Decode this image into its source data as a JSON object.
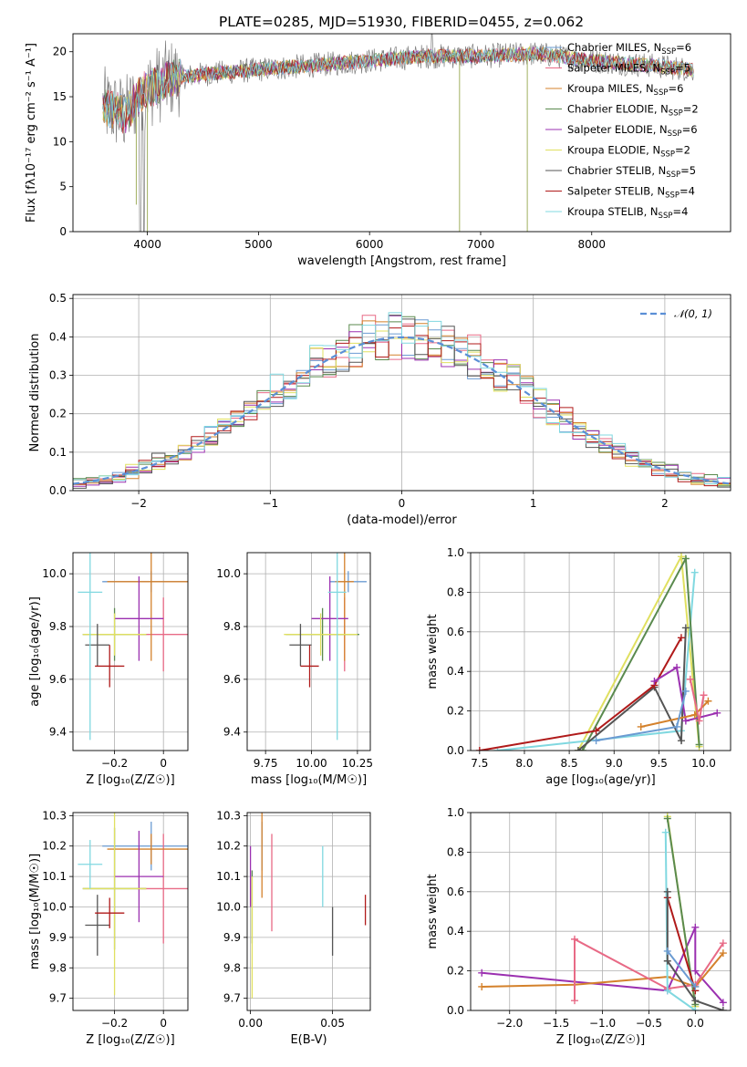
{
  "title": "PLATE=0285, MJD=51930, FIBERID=0455, z=0.062",
  "colors": {
    "grid": "#b0b0b0",
    "normal_fit": "#5b8fd6"
  },
  "chart_data": [
    {
      "id": "spectrum",
      "type": "line",
      "xlabel": "wavelength [Angstrom, rest frame]",
      "ylabel": "Flux [fλ10⁻¹⁷ erg cm⁻² s⁻¹ A⁻¹]",
      "xlim": [
        3330,
        9250
      ],
      "ylim": [
        0,
        22
      ],
      "xticks": [
        4000,
        5000,
        6000,
        7000,
        8000
      ],
      "yticks": [
        0,
        5,
        10,
        15,
        20
      ],
      "data_color": "#7f7f7f",
      "continuum_nodes": [
        [
          3600,
          14
        ],
        [
          3800,
          13
        ],
        [
          3950,
          15.5
        ],
        [
          4200,
          17
        ],
        [
          4500,
          17.5
        ],
        [
          5000,
          18
        ],
        [
          5500,
          18.5
        ],
        [
          6000,
          19
        ],
        [
          6500,
          19.5
        ],
        [
          7000,
          19.5
        ],
        [
          7500,
          19.8
        ],
        [
          8000,
          19
        ],
        [
          8500,
          18.5
        ],
        [
          8920,
          18
        ]
      ],
      "legend": [
        {
          "label": "Chabrier MILES, N",
          "sub": "SSP",
          "tail": "=6",
          "color": "#6b9bd2"
        },
        {
          "label": "Salpeter MILES, N",
          "sub": "SSP",
          "tail": "=5",
          "color": "#e86a86"
        },
        {
          "label": "Kroupa MILES, N",
          "sub": "SSP",
          "tail": "=6",
          "color": "#d4812b"
        },
        {
          "label": "Chabrier ELODIE, N",
          "sub": "SSP",
          "tail": "=2",
          "color": "#5a8a4e"
        },
        {
          "label": "Salpeter ELODIE, N",
          "sub": "SSP",
          "tail": "=6",
          "color": "#9b30b0"
        },
        {
          "label": "Kroupa ELODIE, N",
          "sub": "SSP",
          "tail": "=2",
          "color": "#e0e060"
        },
        {
          "label": "Chabrier STELIB, N",
          "sub": "SSP",
          "tail": "=5",
          "color": "#555555"
        },
        {
          "label": "Salpeter STELIB, N",
          "sub": "SSP",
          "tail": "=4",
          "color": "#b01a1a"
        },
        {
          "label": "Kroupa STELIB, N",
          "sub": "SSP",
          "tail": "=4",
          "color": "#80d8e0"
        }
      ]
    },
    {
      "id": "residual_histogram",
      "type": "bar",
      "xlabel": "(data-model)/error",
      "ylabel": "Normed distribution",
      "xlim": [
        -2.5,
        2.5
      ],
      "ylim": [
        0,
        0.51
      ],
      "xticks": [
        -2,
        -1,
        0,
        1,
        2
      ],
      "yticks": [
        0.0,
        0.1,
        0.2,
        0.3,
        0.4,
        0.5
      ],
      "bin_width": 0.1,
      "legend": "𝒩(0, 1)",
      "model_colors": [
        "#6b9bd2",
        "#e86a86",
        "#d4812b",
        "#5a8a4e",
        "#9b30b0",
        "#e0e060",
        "#555555",
        "#b01a1a",
        "#80d8e0"
      ]
    },
    {
      "id": "age_vs_Z",
      "type": "scatter",
      "xlabel": "Z [log₁₀(Z/Z☉)]",
      "ylabel": "age  [log₁₀(age/yr)]",
      "xlim": [
        -0.37,
        0.1
      ],
      "ylim": [
        9.33,
        10.08
      ],
      "xticks": [
        -0.2,
        0.0
      ],
      "yticks": [
        9.4,
        9.6,
        9.8,
        10.0
      ],
      "points": [
        {
          "x": -0.05,
          "y": 9.97,
          "xerr": 0.2,
          "yerr": 0.04,
          "color": "#6b9bd2"
        },
        {
          "x": 0.0,
          "y": 9.77,
          "xerr": 0.1,
          "yerr": 0.14,
          "color": "#e86a86"
        },
        {
          "x": -0.05,
          "y": 9.97,
          "xerr": 0.18,
          "yerr": 0.3,
          "color": "#d4812b"
        },
        {
          "x": -0.2,
          "y": 9.77,
          "xerr": 0.13,
          "yerr": 0.1,
          "color": "#5a8a4e"
        },
        {
          "x": -0.1,
          "y": 9.83,
          "xerr": 0.1,
          "yerr": 0.16,
          "color": "#9b30b0"
        },
        {
          "x": -0.2,
          "y": 9.77,
          "xerr": 0.13,
          "yerr": 0.08,
          "color": "#e0e060"
        },
        {
          "x": -0.27,
          "y": 9.73,
          "xerr": 0.05,
          "yerr": 0.08,
          "color": "#555555"
        },
        {
          "x": -0.22,
          "y": 9.65,
          "xerr": 0.06,
          "yerr": 0.08,
          "color": "#b01a1a"
        },
        {
          "x": -0.3,
          "y": 9.93,
          "xerr": 0.05,
          "yerr": 0.56,
          "color": "#80d8e0"
        }
      ]
    },
    {
      "id": "age_vs_mass",
      "type": "scatter",
      "xlabel": "mass [log₁₀(M/M☉)]",
      "xlim": [
        9.65,
        10.32
      ],
      "ylim": [
        9.33,
        10.08
      ],
      "xticks": [
        9.75,
        10.0,
        10.25
      ],
      "xticklabels": [
        "9.75",
        "10.00",
        "10.25"
      ],
      "yticks": [
        9.4,
        9.6,
        9.8,
        10.0
      ],
      "points": [
        {
          "x": 10.2,
          "y": 9.97,
          "xerr": 0.1,
          "yerr": 0.04,
          "color": "#6b9bd2"
        },
        {
          "x": 10.18,
          "y": 9.77,
          "xerr": 0.06,
          "yerr": 0.14,
          "color": "#e86a86"
        },
        {
          "x": 10.18,
          "y": 9.97,
          "xerr": 0.05,
          "yerr": 0.3,
          "color": "#d4812b"
        },
        {
          "x": 10.06,
          "y": 9.77,
          "xerr": 0.2,
          "yerr": 0.1,
          "color": "#5a8a4e"
        },
        {
          "x": 10.1,
          "y": 9.83,
          "xerr": 0.1,
          "yerr": 0.16,
          "color": "#9b30b0"
        },
        {
          "x": 10.05,
          "y": 9.77,
          "xerr": 0.2,
          "yerr": 0.08,
          "color": "#e0e060"
        },
        {
          "x": 9.94,
          "y": 9.73,
          "xerr": 0.06,
          "yerr": 0.08,
          "color": "#555555"
        },
        {
          "x": 9.99,
          "y": 9.65,
          "xerr": 0.05,
          "yerr": 0.08,
          "color": "#b01a1a"
        },
        {
          "x": 10.14,
          "y": 9.93,
          "xerr": 0.05,
          "yerr": 0.56,
          "color": "#80d8e0"
        }
      ]
    },
    {
      "id": "mass_weight_vs_age",
      "type": "line",
      "xlabel": "age  [log₁₀(age/yr)]",
      "ylabel": "mass weight",
      "xlim": [
        7.4,
        10.3
      ],
      "ylim": [
        0,
        1
      ],
      "xticks": [
        7.5,
        8.0,
        8.5,
        9.0,
        9.5,
        10.0
      ],
      "xticklabels": [
        "7.5",
        "8.0",
        "8.5",
        "9.0",
        "9.5",
        "10.0"
      ],
      "yticks": [
        0.0,
        0.2,
        0.4,
        0.6,
        0.8,
        1.0
      ],
      "series": [
        {
          "color": "#e0e060",
          "x": [
            8.6,
            9.75,
            9.95
          ],
          "y": [
            0.0,
            0.98,
            0.02
          ]
        },
        {
          "color": "#80d8e0",
          "x": [
            7.7,
            9.75,
            9.9
          ],
          "y": [
            0.0,
            0.1,
            0.9
          ]
        },
        {
          "color": "#5a8a4e",
          "x": [
            8.65,
            9.8,
            9.95
          ],
          "y": [
            0.0,
            0.97,
            0.03
          ]
        },
        {
          "color": "#555555",
          "x": [
            8.6,
            9.45,
            9.75,
            9.8
          ],
          "y": [
            0.0,
            0.32,
            0.05,
            0.62
          ]
        },
        {
          "color": "#b01a1a",
          "x": [
            7.5,
            8.8,
            9.45,
            9.75
          ],
          "y": [
            0.0,
            0.1,
            0.33,
            0.57
          ]
        },
        {
          "color": "#9b30b0",
          "x": [
            9.45,
            9.7,
            9.8,
            10.15
          ],
          "y": [
            0.35,
            0.42,
            0.15,
            0.19
          ]
        },
        {
          "color": "#d4812b",
          "x": [
            9.3,
            9.9,
            10.05
          ],
          "y": [
            0.12,
            0.18,
            0.25
          ]
        },
        {
          "color": "#e86a86",
          "x": [
            9.85,
            9.95,
            10.0
          ],
          "y": [
            0.36,
            0.15,
            0.28
          ]
        },
        {
          "color": "#6b9bd2",
          "x": [
            8.8,
            9.7,
            9.8
          ],
          "y": [
            0.05,
            0.12,
            0.3
          ]
        }
      ]
    },
    {
      "id": "mass_vs_Z",
      "type": "scatter",
      "xlabel": "Z [log₁₀(Z/Z☉)]",
      "ylabel": "mass [log₁₀(M/M☉)]",
      "xlim": [
        -0.37,
        0.1
      ],
      "ylim": [
        9.66,
        10.31
      ],
      "xticks": [
        -0.2,
        0.0
      ],
      "yticks": [
        9.7,
        9.8,
        9.9,
        10.0,
        10.1,
        10.2,
        10.3
      ],
      "points": [
        {
          "x": -0.05,
          "y": 10.2,
          "xerr": 0.2,
          "yerr": 0.08,
          "color": "#6b9bd2"
        },
        {
          "x": 0.0,
          "y": 10.06,
          "xerr": 0.1,
          "yerr": 0.18,
          "color": "#e86a86"
        },
        {
          "x": -0.05,
          "y": 10.19,
          "xerr": 0.18,
          "yerr": 0.05,
          "color": "#d4812b"
        },
        {
          "x": -0.2,
          "y": 10.06,
          "xerr": 0.13,
          "yerr": 0.2,
          "color": "#5a8a4e"
        },
        {
          "x": -0.1,
          "y": 10.1,
          "xerr": 0.1,
          "yerr": 0.15,
          "color": "#9b30b0"
        },
        {
          "x": -0.2,
          "y": 10.06,
          "xerr": 0.13,
          "yerr": 0.35,
          "color": "#e0e060"
        },
        {
          "x": -0.27,
          "y": 9.94,
          "xerr": 0.05,
          "yerr": 0.1,
          "color": "#555555"
        },
        {
          "x": -0.22,
          "y": 9.98,
          "xerr": 0.06,
          "yerr": 0.05,
          "color": "#b01a1a"
        },
        {
          "x": -0.3,
          "y": 10.14,
          "xerr": 0.05,
          "yerr": 0.08,
          "color": "#80d8e0"
        }
      ]
    },
    {
      "id": "mass_vs_EBV",
      "type": "scatter",
      "xlabel": "E(B-V)",
      "xlim": [
        -0.002,
        0.073
      ],
      "ylim": [
        9.66,
        10.31
      ],
      "xticks": [
        0.0,
        0.05
      ],
      "xticklabels": [
        "0.00",
        "0.05"
      ],
      "yticks": [
        9.7,
        9.8,
        9.9,
        10.0,
        10.1,
        10.2,
        10.3
      ],
      "points": [
        {
          "x": 0.007,
          "y": 10.2,
          "yerr": 0.08,
          "color": "#6b9bd2"
        },
        {
          "x": 0.013,
          "y": 10.08,
          "yerr": 0.16,
          "color": "#e86a86"
        },
        {
          "x": 0.007,
          "y": 10.19,
          "yerr": 0.16,
          "color": "#d4812b"
        },
        {
          "x": 0.001,
          "y": 10.0,
          "yerr": 0.12,
          "color": "#5a8a4e"
        },
        {
          "x": 0.0,
          "y": 10.1,
          "yerr": 0.1,
          "color": "#9b30b0"
        },
        {
          "x": 0.001,
          "y": 9.9,
          "yerr": 0.2,
          "color": "#e0e060"
        },
        {
          "x": 0.05,
          "y": 9.92,
          "yerr": 0.08,
          "color": "#555555"
        },
        {
          "x": 0.07,
          "y": 9.99,
          "yerr": 0.05,
          "color": "#b01a1a"
        },
        {
          "x": 0.044,
          "y": 10.1,
          "yerr": 0.1,
          "color": "#80d8e0"
        }
      ]
    },
    {
      "id": "mass_weight_vs_Z",
      "type": "line",
      "xlabel": "Z [log₁₀(Z/Z☉)]",
      "ylabel": "mass weight",
      "xlim": [
        -2.42,
        0.38
      ],
      "ylim": [
        0,
        1
      ],
      "xticks": [
        -2.0,
        -1.5,
        -1.0,
        -0.5,
        0.0
      ],
      "xticklabels": [
        "−2.0",
        "−1.5",
        "−1.0",
        "−0.5",
        "0.0"
      ],
      "yticks": [
        0.0,
        0.2,
        0.4,
        0.6,
        0.8,
        1.0
      ],
      "series": [
        {
          "color": "#9b30b0",
          "x": [
            -2.3,
            -0.3,
            0.0,
            0.0,
            0.3
          ],
          "y": [
            0.19,
            0.1,
            0.42,
            0.2,
            0.04
          ]
        },
        {
          "color": "#d4812b",
          "x": [
            -2.3,
            -1.3,
            -0.3,
            0.0,
            0.3
          ],
          "y": [
            0.12,
            0.13,
            0.17,
            0.12,
            0.29
          ]
        },
        {
          "color": "#e86a86",
          "x": [
            -1.3,
            -1.3,
            -0.3,
            0.0,
            0.3
          ],
          "y": [
            0.05,
            0.36,
            0.11,
            0.13,
            0.34
          ]
        },
        {
          "color": "#e0e060",
          "x": [
            -0.3,
            0.0
          ],
          "y": [
            0.98,
            0.02
          ]
        },
        {
          "color": "#5a8a4e",
          "x": [
            -0.3,
            0.0
          ],
          "y": [
            0.97,
            0.03
          ]
        },
        {
          "color": "#80d8e0",
          "x": [
            -0.32,
            -0.3,
            0.0
          ],
          "y": [
            0.9,
            0.1,
            0.0
          ]
        },
        {
          "color": "#b01a1a",
          "x": [
            -0.3,
            0.0
          ],
          "y": [
            0.57,
            0.1
          ]
        },
        {
          "color": "#555555",
          "x": [
            -0.3,
            -0.3,
            0.0,
            0.3
          ],
          "y": [
            0.6,
            0.25,
            0.05,
            0.0
          ]
        },
        {
          "color": "#6b9bd2",
          "x": [
            -0.3,
            0.0
          ],
          "y": [
            0.3,
            0.12
          ]
        }
      ]
    }
  ]
}
